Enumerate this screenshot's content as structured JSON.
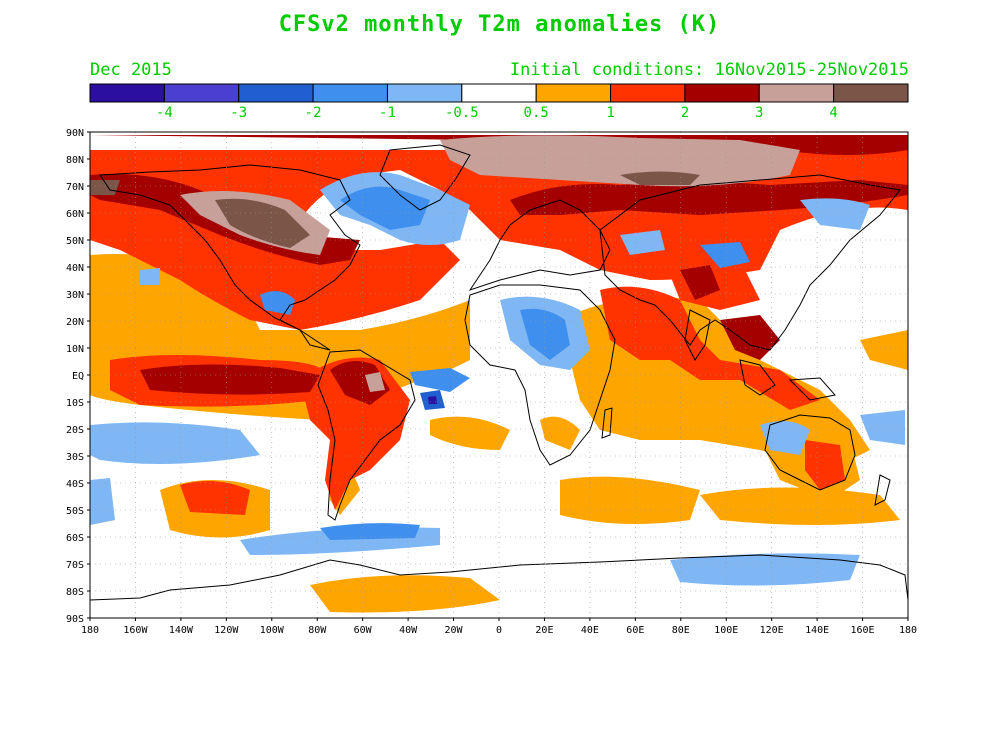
{
  "title": "CFSv2 monthly T2m anomalies (K)",
  "valid_month": "Dec 2015",
  "initial_conditions": "Initial conditions: 16Nov2015-25Nov2015",
  "colorbar": {
    "colors": [
      "#2b0fa0",
      "#4a3fd0",
      "#1f5fd0",
      "#3f8fef",
      "#7fb7f5",
      "#ffffff",
      "#ffa500",
      "#ff3300",
      "#a50000",
      "#c8a09a",
      "#7a5548"
    ],
    "labels": [
      "-4",
      "-3",
      "-2",
      "-1",
      "-0.5",
      "0.5",
      "1",
      "2",
      "3",
      "4"
    ]
  },
  "map": {
    "lat_labels": [
      "90N",
      "80N",
      "70N",
      "60N",
      "50N",
      "40N",
      "30N",
      "20N",
      "10N",
      "EQ",
      "10S",
      "20S",
      "30S",
      "40S",
      "50S",
      "60S",
      "70S",
      "80S",
      "90S"
    ],
    "lon_labels": [
      "180",
      "160W",
      "140W",
      "120W",
      "100W",
      "80W",
      "60W",
      "40W",
      "20W",
      "0",
      "20E",
      "40E",
      "60E",
      "80E",
      "100E",
      "120E",
      "140E",
      "160E",
      "180"
    ]
  }
}
